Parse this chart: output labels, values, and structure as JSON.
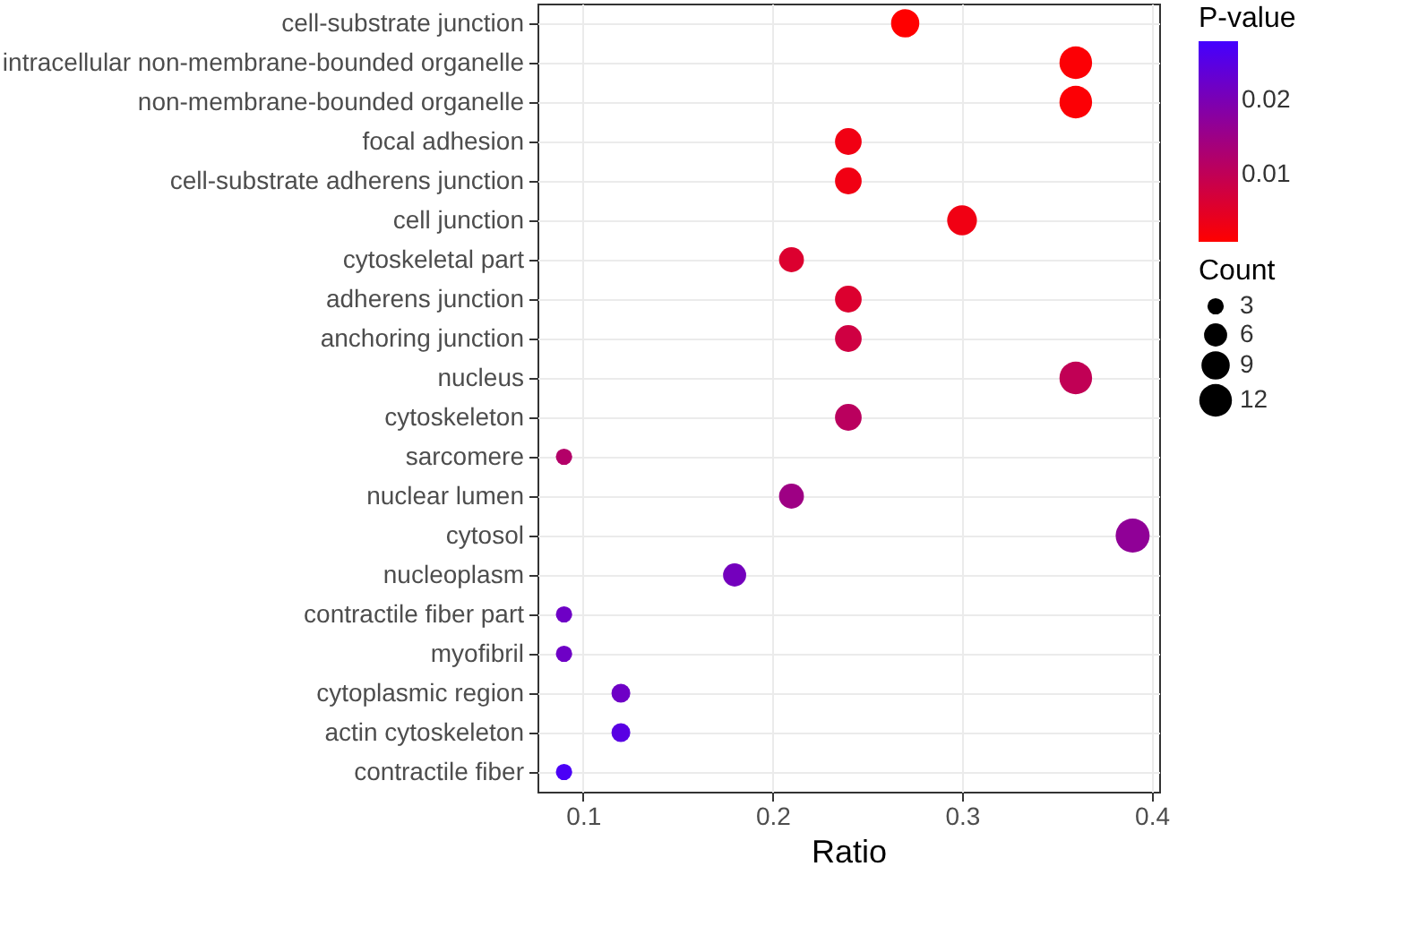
{
  "chart_data": {
    "type": "bubble",
    "orientation": "horizontal",
    "xlabel": "Ratio",
    "clabel": "P-value",
    "legend_title": "Count",
    "categories": [
      "cell-substrate junction",
      "intracellular non-membrane-bounded organelle",
      "non-membrane-bounded organelle",
      "focal adhesion",
      "cell-substrate adherens junction",
      "cell junction",
      "cytoskeletal part",
      "adherens junction",
      "anchoring junction",
      "nucleus",
      "cytoskeleton",
      "sarcomere",
      "nuclear lumen",
      "cytosol",
      "nucleoplasm",
      "contractile fiber part",
      "myofibril",
      "cytoplasmic region",
      "actin cytoskeleton",
      "contractile fiber"
    ],
    "values": [
      0.27,
      0.36,
      0.36,
      0.24,
      0.24,
      0.3,
      0.21,
      0.24,
      0.24,
      0.36,
      0.24,
      0.09,
      0.21,
      0.39,
      0.18,
      0.09,
      0.09,
      0.12,
      0.12,
      0.09
    ],
    "sizes": [
      9,
      12,
      12,
      8,
      8,
      10,
      7,
      8,
      8,
      12,
      8,
      3,
      7,
      13,
      6,
      3,
      3,
      4,
      4,
      3
    ],
    "cvalues": [
      0.001,
      0.0015,
      0.0015,
      0.003,
      0.003,
      0.003,
      0.006,
      0.006,
      0.008,
      0.01,
      0.011,
      0.012,
      0.015,
      0.017,
      0.021,
      0.022,
      0.022,
      0.022,
      0.025,
      0.027
    ],
    "size_legend": [
      3,
      6,
      9,
      12
    ],
    "clim": [
      0.001,
      0.028
    ],
    "cticks": [
      0.01,
      0.02
    ],
    "xlim": [
      0.076,
      0.404
    ],
    "xticks": [
      0.1,
      0.2,
      0.3,
      0.4
    ],
    "grid": true
  }
}
